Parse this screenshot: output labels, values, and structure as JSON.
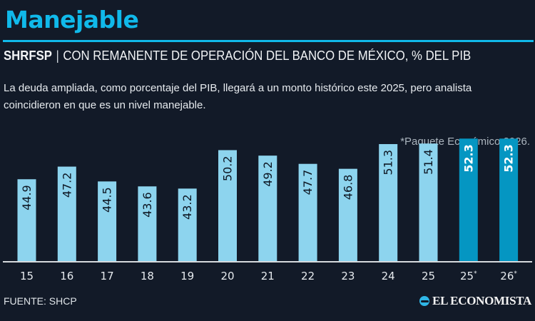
{
  "header": {
    "title": "Manejable",
    "subtitle_bold": "SHRFSP",
    "subtitle_sep": "|",
    "subtitle_rest": "CON REMANENTE DE OPERACIÓN DEL BANCO DE MÉXICO, % DEL PIB",
    "description": "La deuda ampliada, como porcentaje del PIB, llegará a un monto histórico este 2025, pero analista coincidieron en que es un nivel manejable.",
    "note": "*Paquete Económico 2026."
  },
  "footer": {
    "source": "FUENTE: SHCP",
    "logo_icon": "el-economista-logo-icon",
    "logo_text": "EL ECONOMISTA"
  },
  "colors": {
    "accent": "#10b9ea",
    "bar_historic": "#8dd4ee",
    "bar_projected": "#0596c2",
    "background": "#121a28",
    "axis": "#d6dadd"
  },
  "chart_data": {
    "type": "bar",
    "title": "SHRFSP con remanente de operación del Banco de México, % del PIB",
    "xlabel": "",
    "ylabel": "% del PIB",
    "ylim": [
      30,
      53
    ],
    "grid": false,
    "legend": "none",
    "categories": [
      "15",
      "16",
      "17",
      "18",
      "19",
      "20",
      "21",
      "22",
      "23",
      "24",
      "25",
      "25*",
      "26*"
    ],
    "values": [
      44.9,
      47.2,
      44.5,
      43.6,
      43.2,
      50.2,
      49.2,
      47.7,
      46.8,
      51.3,
      51.4,
      52.3,
      52.3
    ],
    "labels": [
      "44.9",
      "47.2",
      "44.5",
      "43.6",
      "43.2",
      "50.2",
      "49.2",
      "47.7",
      "46.8",
      "51.3",
      "51.4",
      "52.3",
      "52.3"
    ],
    "projected": [
      false,
      false,
      false,
      false,
      false,
      false,
      false,
      false,
      false,
      false,
      false,
      true,
      true
    ],
    "annotations": [
      "*Paquete Económico 2026."
    ]
  }
}
